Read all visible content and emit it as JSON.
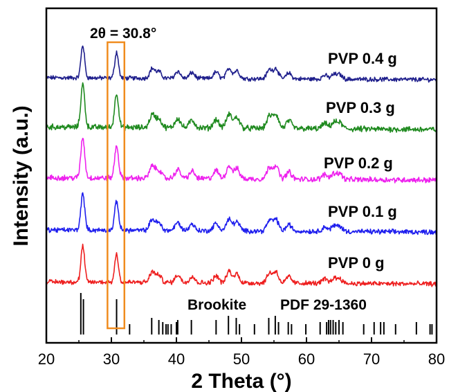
{
  "chart_data": {
    "type": "line",
    "xlabel": "2 Theta (°)",
    "ylabel": "Intensity (a.u.)",
    "xlim": [
      20,
      80
    ],
    "xticks": [
      20,
      30,
      40,
      50,
      60,
      70,
      80
    ],
    "grid": false,
    "annotation": {
      "text": "2θ = 30.8°",
      "x_center": 30.6,
      "x_range": [
        29.4,
        32.0
      ]
    },
    "highlight_color": "#f08c1e",
    "reference": {
      "label": "Brookite",
      "pdf": "PDF 29-1360",
      "color": "#000000",
      "peaks": [
        {
          "x": 25.3,
          "h": 1.0
        },
        {
          "x": 25.7,
          "h": 0.85
        },
        {
          "x": 30.8,
          "h": 0.85
        },
        {
          "x": 32.8,
          "h": 0.25
        },
        {
          "x": 36.2,
          "h": 0.4
        },
        {
          "x": 37.3,
          "h": 0.35
        },
        {
          "x": 37.9,
          "h": 0.3
        },
        {
          "x": 38.4,
          "h": 0.25
        },
        {
          "x": 38.7,
          "h": 0.25
        },
        {
          "x": 39.2,
          "h": 0.25
        },
        {
          "x": 40.0,
          "h": 0.3
        },
        {
          "x": 40.2,
          "h": 0.35
        },
        {
          "x": 42.3,
          "h": 0.35
        },
        {
          "x": 46.1,
          "h": 0.35
        },
        {
          "x": 48.0,
          "h": 0.45
        },
        {
          "x": 49.2,
          "h": 0.4
        },
        {
          "x": 49.7,
          "h": 0.25
        },
        {
          "x": 52.0,
          "h": 0.25
        },
        {
          "x": 54.2,
          "h": 0.4
        },
        {
          "x": 55.2,
          "h": 0.45
        },
        {
          "x": 55.7,
          "h": 0.3
        },
        {
          "x": 57.2,
          "h": 0.3
        },
        {
          "x": 57.7,
          "h": 0.25
        },
        {
          "x": 59.9,
          "h": 0.25
        },
        {
          "x": 62.1,
          "h": 0.3
        },
        {
          "x": 63.1,
          "h": 0.3
        },
        {
          "x": 63.4,
          "h": 0.35
        },
        {
          "x": 63.7,
          "h": 0.35
        },
        {
          "x": 64.1,
          "h": 0.35
        },
        {
          "x": 64.5,
          "h": 0.3
        },
        {
          "x": 65.0,
          "h": 0.35
        },
        {
          "x": 65.6,
          "h": 0.3
        },
        {
          "x": 68.8,
          "h": 0.25
        },
        {
          "x": 70.4,
          "h": 0.3
        },
        {
          "x": 71.4,
          "h": 0.3
        },
        {
          "x": 71.9,
          "h": 0.3
        },
        {
          "x": 73.7,
          "h": 0.25
        },
        {
          "x": 76.9,
          "h": 0.3
        },
        {
          "x": 79.0,
          "h": 0.25
        },
        {
          "x": 79.3,
          "h": 0.25
        }
      ]
    },
    "series": [
      {
        "name": "PVP 0.4 g",
        "color": "#1f1f8c"
      },
      {
        "name": "PVP 0.3 g",
        "color": "#1f8a1f"
      },
      {
        "name": "PVP 0.2 g",
        "color": "#ee22ee"
      },
      {
        "name": "PVP 0.1 g",
        "color": "#1f1fee"
      },
      {
        "name": "PVP 0 g",
        "color": "#ee1f1f"
      }
    ],
    "sample_peaks": [
      {
        "x": 25.6,
        "h": 1.0
      },
      {
        "x": 30.8,
        "h": 0.8
      },
      {
        "x": 36.3,
        "h": 0.3
      },
      {
        "x": 37.3,
        "h": 0.2
      },
      {
        "x": 40.2,
        "h": 0.22
      },
      {
        "x": 42.4,
        "h": 0.18
      },
      {
        "x": 46.1,
        "h": 0.2
      },
      {
        "x": 48.1,
        "h": 0.32
      },
      {
        "x": 49.3,
        "h": 0.25
      },
      {
        "x": 54.3,
        "h": 0.28
      },
      {
        "x": 55.3,
        "h": 0.32
      },
      {
        "x": 57.3,
        "h": 0.18
      },
      {
        "x": 62.8,
        "h": 0.12
      },
      {
        "x": 64.2,
        "h": 0.14
      },
      {
        "x": 65.1,
        "h": 0.14
      }
    ]
  }
}
